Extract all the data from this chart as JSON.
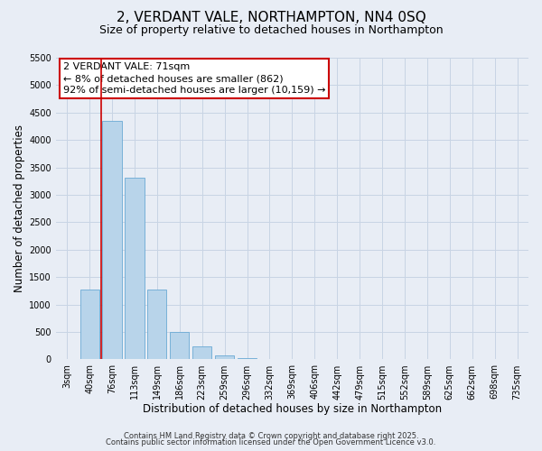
{
  "title": "2, VERDANT VALE, NORTHAMPTON, NN4 0SQ",
  "subtitle": "Size of property relative to detached houses in Northampton",
  "xlabel": "Distribution of detached houses by size in Northampton",
  "ylabel": "Number of detached properties",
  "bar_labels": [
    "3sqm",
    "40sqm",
    "76sqm",
    "113sqm",
    "149sqm",
    "186sqm",
    "223sqm",
    "259sqm",
    "296sqm",
    "332sqm",
    "369sqm",
    "406sqm",
    "442sqm",
    "479sqm",
    "515sqm",
    "552sqm",
    "589sqm",
    "625sqm",
    "662sqm",
    "698sqm",
    "735sqm"
  ],
  "bar_values": [
    0,
    1270,
    4350,
    3320,
    1280,
    500,
    230,
    80,
    30,
    10,
    5,
    2,
    0,
    0,
    0,
    0,
    0,
    0,
    0,
    0,
    0
  ],
  "bar_color": "#b8d4ea",
  "bar_edge_color": "#6aaad4",
  "vline_color": "#cc0000",
  "vline_position": 1.5,
  "ylim": [
    0,
    5500
  ],
  "yticks": [
    0,
    500,
    1000,
    1500,
    2000,
    2500,
    3000,
    3500,
    4000,
    4500,
    5000,
    5500
  ],
  "annotation_title": "2 VERDANT VALE: 71sqm",
  "annotation_line1": "← 8% of detached houses are smaller (862)",
  "annotation_line2": "92% of semi-detached houses are larger (10,159) →",
  "annotation_box_color": "#ffffff",
  "annotation_border_color": "#cc0000",
  "grid_color": "#c8d4e4",
  "bg_color": "#e8edf5",
  "footer_line1": "Contains HM Land Registry data © Crown copyright and database right 2025.",
  "footer_line2": "Contains public sector information licensed under the Open Government Licence v3.0.",
  "title_fontsize": 11,
  "subtitle_fontsize": 9,
  "axis_label_fontsize": 8.5,
  "tick_fontsize": 7,
  "annotation_fontsize": 8,
  "footer_fontsize": 6
}
